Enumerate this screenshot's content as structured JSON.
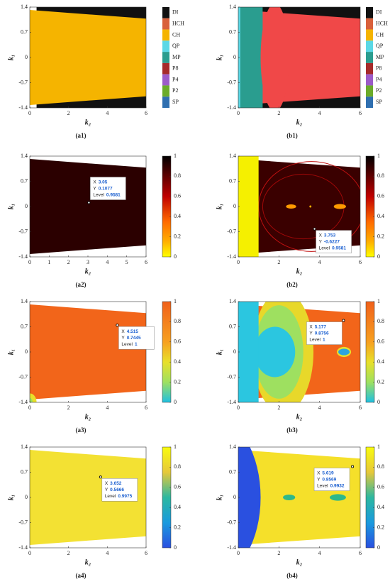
{
  "chart_data": [
    {
      "type": "heatmap",
      "label": "(a1)",
      "xlabel": "k₂",
      "ylabel": "k₁",
      "xlim": [
        0,
        6
      ],
      "xticks": [
        0,
        2,
        4,
        6
      ],
      "ylim": [
        -1.4,
        1.4
      ],
      "yticks": [
        -1.4,
        -0.7,
        0,
        0.7,
        1.4
      ],
      "legend": {
        "labels": [
          "DI",
          "HCH",
          "CH",
          "QP",
          "MP",
          "P8",
          "P4",
          "P2",
          "SP"
        ],
        "colors": [
          "#111111",
          "#d9603b",
          "#f5b400",
          "#5ad8e6",
          "#2a9d8f",
          "#a62a2a",
          "#9c5bc8",
          "#6bab2a",
          "#2f6fb0"
        ]
      }
    },
    {
      "type": "heatmap",
      "label": "(b1)",
      "xlabel": "k₂",
      "ylabel": "k₁",
      "xlim": [
        0,
        6
      ],
      "xticks": [
        0,
        2,
        4,
        6
      ],
      "ylim": [
        -1.4,
        1.4
      ],
      "yticks": [
        -1.4,
        -0.7,
        0,
        0.7,
        1.4
      ],
      "legend": {
        "labels": [
          "DI",
          "HCH",
          "CH",
          "QP",
          "MP",
          "P8",
          "P4",
          "P2",
          "SP"
        ],
        "colors": [
          "#111111",
          "#d9603b",
          "#f5b400",
          "#5ad8e6",
          "#2a9d8f",
          "#a62a2a",
          "#9c5bc8",
          "#6bab2a",
          "#2f6fb0"
        ]
      }
    },
    {
      "type": "heatmap",
      "label": "(a2)",
      "xlabel": "k₂",
      "ylabel": "k₁",
      "xlim": [
        0,
        6
      ],
      "xticks": [
        0,
        1,
        2,
        3,
        4,
        5,
        6
      ],
      "ylim": [
        -1.4,
        1.4
      ],
      "yticks": [
        -1.4,
        -0.7,
        0,
        0.7,
        1.4
      ],
      "colormap": "hot",
      "clim": [
        0,
        1
      ],
      "cticks": [
        0,
        0.2,
        0.4,
        0.6,
        0.8,
        1
      ],
      "datatip": {
        "fields": [
          "X",
          "Y",
          "Level"
        ],
        "x": 3.05,
        "y": 0.1077,
        "level": 0.9581
      }
    },
    {
      "type": "heatmap",
      "label": "(b2)",
      "xlabel": "k₂",
      "ylabel": "k₁",
      "xlim": [
        0,
        6
      ],
      "xticks": [
        0,
        2,
        4,
        6
      ],
      "ylim": [
        -1.4,
        1.4
      ],
      "yticks": [
        -1.4,
        -0.7,
        0,
        0.7,
        1.4
      ],
      "colormap": "hot",
      "clim": [
        0,
        1
      ],
      "cticks": [
        0,
        0.2,
        0.4,
        0.6,
        0.8,
        1
      ],
      "datatip": {
        "fields": [
          "X",
          "Y",
          "Level"
        ],
        "x": 3.753,
        "y": -0.6227,
        "level": 0.9581
      }
    },
    {
      "type": "heatmap",
      "label": "(a3)",
      "xlabel": "k₂",
      "ylabel": "k₁",
      "xlim": [
        0,
        6
      ],
      "xticks": [
        0,
        2,
        4,
        6
      ],
      "ylim": [
        -1.4,
        1.4
      ],
      "yticks": [
        -1.4,
        -0.7,
        0,
        0.7,
        1.4
      ],
      "colormap": "jet-warm",
      "clim": [
        0,
        1
      ],
      "cticks": [
        0,
        0.2,
        0.4,
        0.6,
        0.8,
        1
      ],
      "datatip": {
        "fields": [
          "X",
          "Y",
          "Level"
        ],
        "x": 4.515,
        "y": 0.7445,
        "level": 1
      }
    },
    {
      "type": "heatmap",
      "label": "(b3)",
      "xlabel": "k₂",
      "ylabel": "k₁",
      "xlim": [
        0,
        6
      ],
      "xticks": [
        0,
        2,
        4,
        6
      ],
      "ylim": [
        -1.4,
        1.4
      ],
      "yticks": [
        -1.4,
        -0.7,
        0,
        0.7,
        1.4
      ],
      "colormap": "jet-warm",
      "clim": [
        0,
        1
      ],
      "cticks": [
        0,
        0.2,
        0.4,
        0.6,
        0.8,
        1
      ],
      "datatip": {
        "fields": [
          "X",
          "Y",
          "Level"
        ],
        "x": 5.177,
        "y": 0.8756,
        "level": 1
      }
    },
    {
      "type": "heatmap",
      "label": "(a4)",
      "xlabel": "k₂",
      "ylabel": "k₁",
      "xlim": [
        0,
        6
      ],
      "xticks": [
        0,
        2,
        4,
        6
      ],
      "ylim": [
        -1.4,
        1.4
      ],
      "yticks": [
        -1.4,
        -0.7,
        0,
        0.7,
        1.4
      ],
      "colormap": "parula",
      "clim": [
        0,
        1
      ],
      "cticks": [
        0,
        0.2,
        0.4,
        0.6,
        0.8,
        1
      ],
      "datatip": {
        "fields": [
          "X",
          "Y",
          "Level"
        ],
        "x": 3.652,
        "y": 0.5666,
        "level": 0.9975
      }
    },
    {
      "type": "heatmap",
      "label": "(b4)",
      "xlabel": "k₂",
      "ylabel": "k₁",
      "xlim": [
        0,
        6
      ],
      "xticks": [
        0,
        2,
        4,
        6
      ],
      "ylim": [
        -1.4,
        1.4
      ],
      "yticks": [
        -1.4,
        -0.7,
        0,
        0.7,
        1.4
      ],
      "colormap": "parula",
      "clim": [
        0,
        1
      ],
      "cticks": [
        0,
        0.2,
        0.4,
        0.6,
        0.8,
        1
      ],
      "datatip": {
        "fields": [
          "X",
          "Y",
          "Level"
        ],
        "x": 5.619,
        "y": 0.8569,
        "level": 0.9932
      }
    }
  ]
}
